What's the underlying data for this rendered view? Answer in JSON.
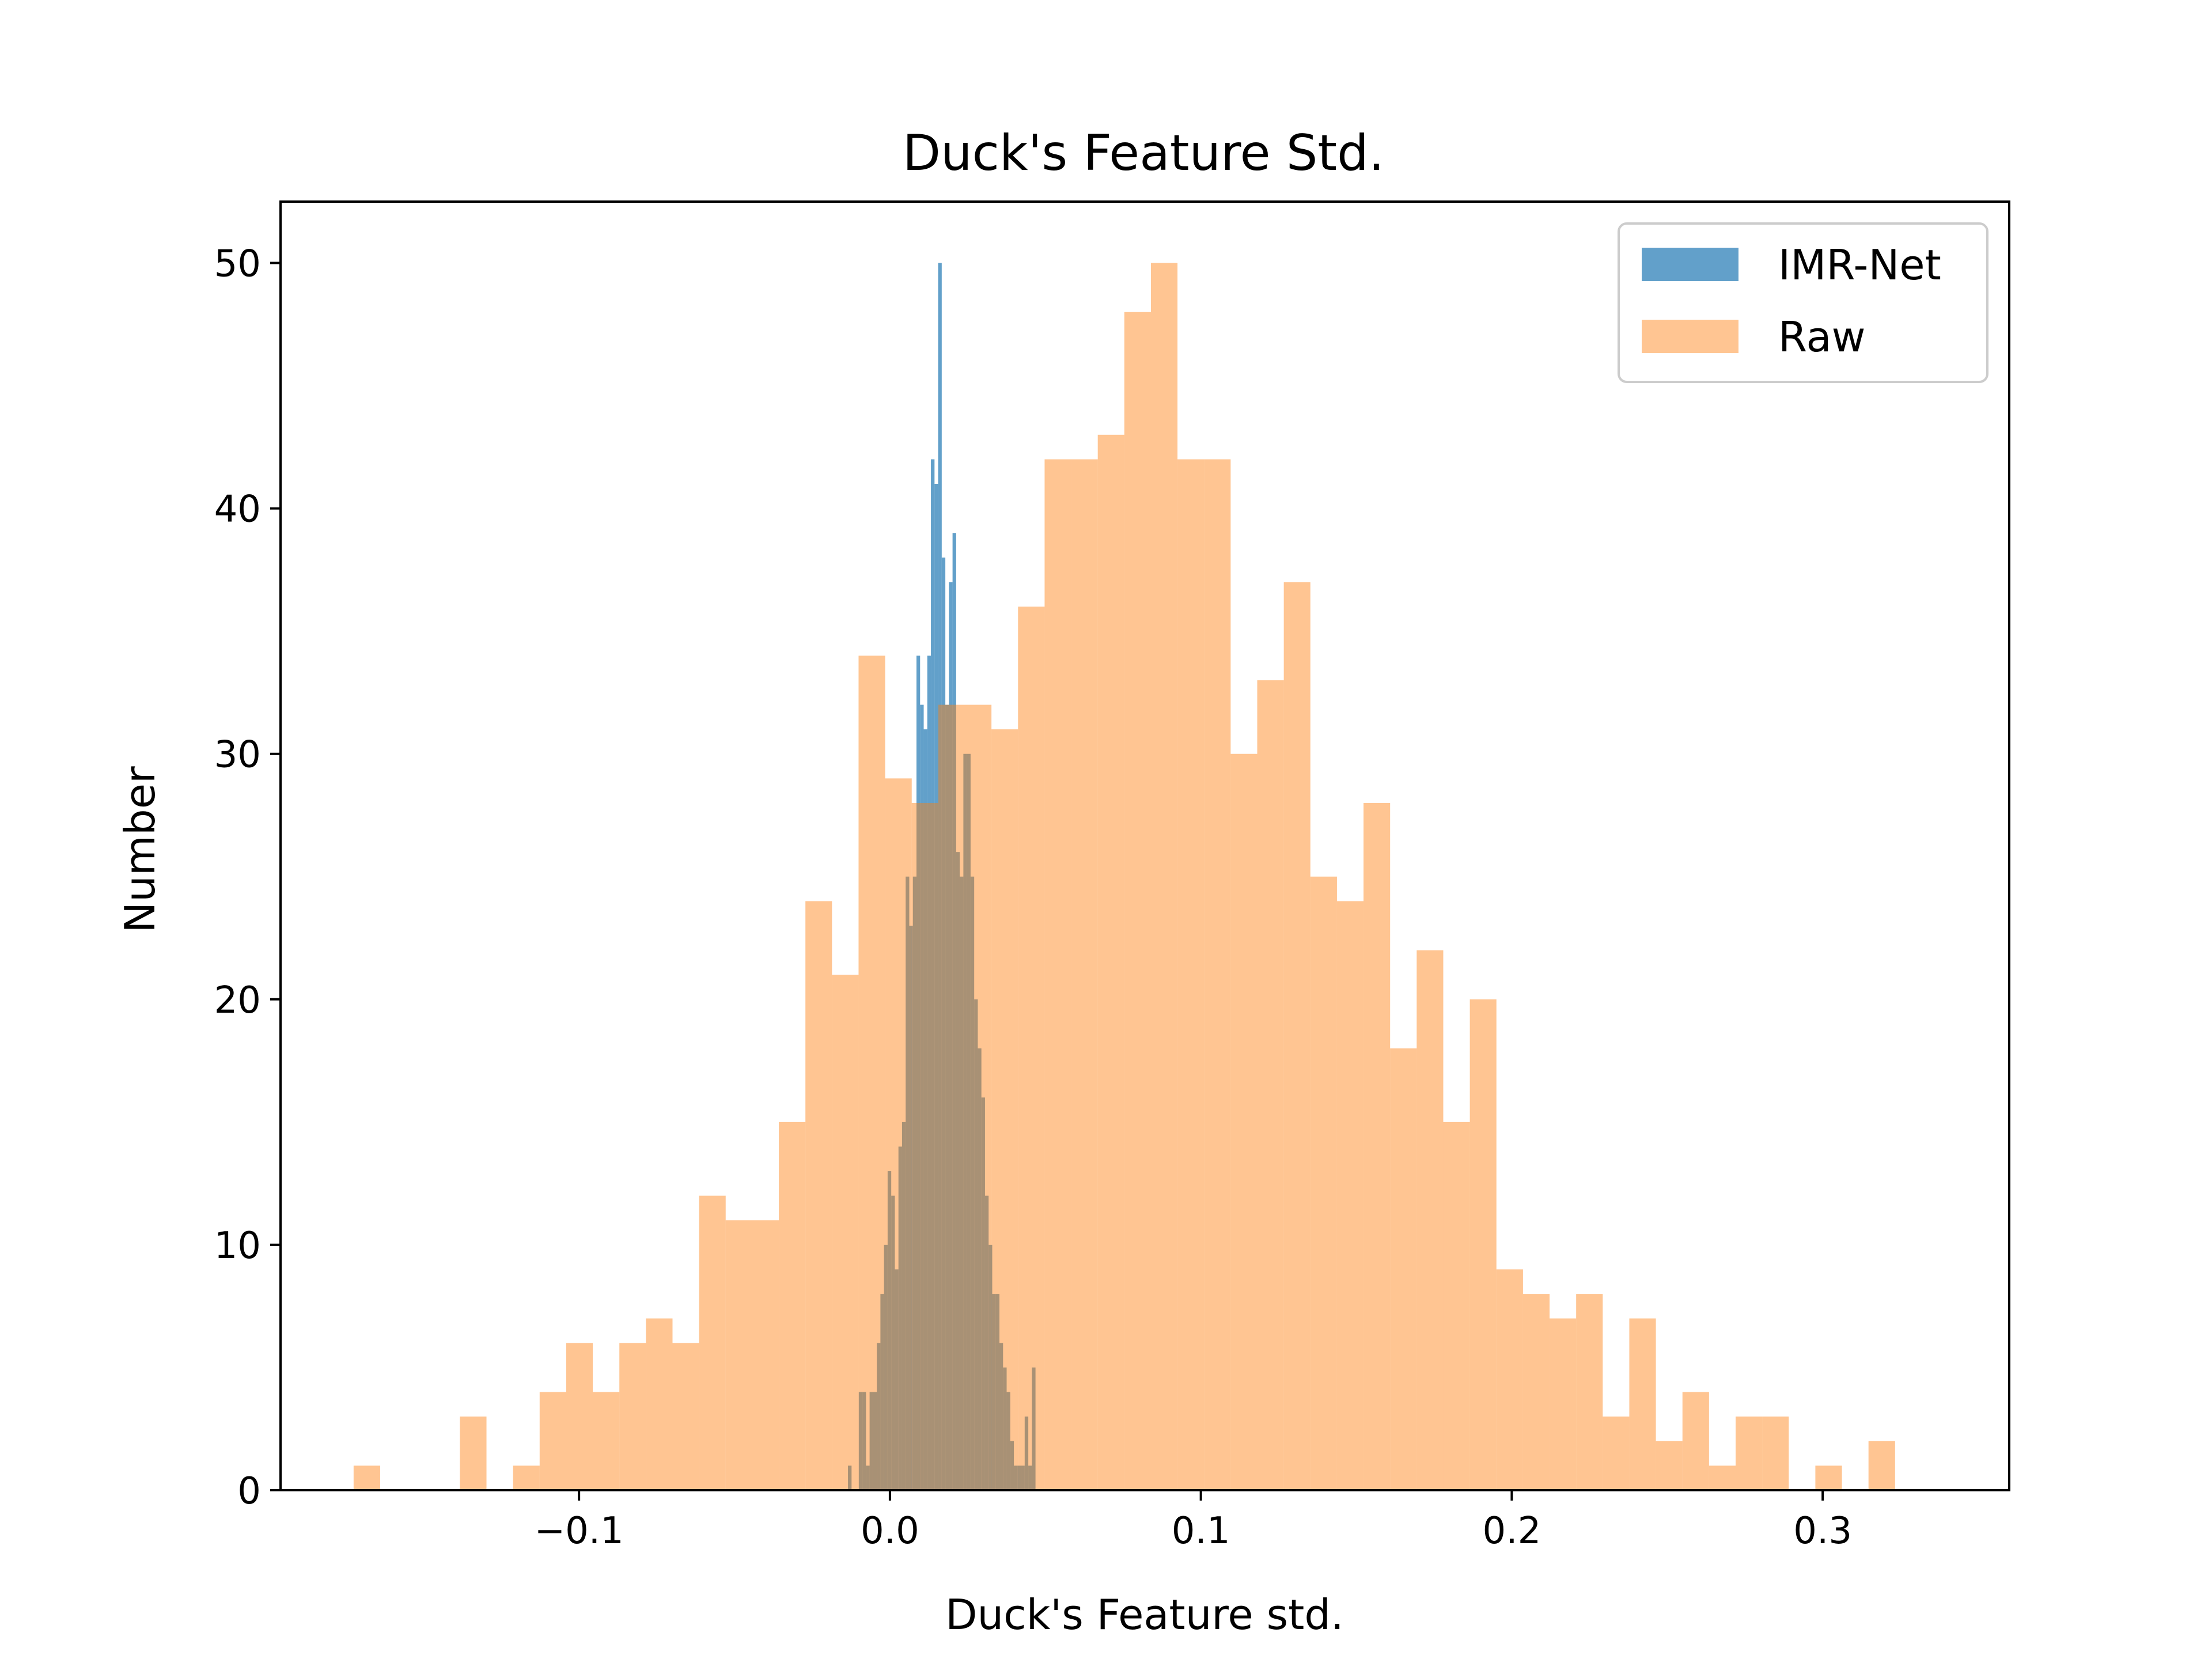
{
  "chart_data": {
    "type": "histogram",
    "title": "Duck's Feature Std.",
    "xlabel": "Duck's Feature std.",
    "ylabel": "Number",
    "xlim": [
      -0.196,
      0.36
    ],
    "ylim": [
      0,
      52.5
    ],
    "xticks": [
      -0.1,
      0.0,
      0.1,
      0.2,
      0.3
    ],
    "xtick_labels": [
      "−0.1",
      "0.0",
      "0.1",
      "0.2",
      "0.3"
    ],
    "yticks": [
      0,
      10,
      20,
      30,
      40,
      50
    ],
    "ytick_labels": [
      "0",
      "10",
      "20",
      "30",
      "40",
      "50"
    ],
    "grid": false,
    "legend_position": "top-right",
    "series": [
      {
        "name": "IMR-Net",
        "color": "#1f77b4",
        "alpha": 0.7,
        "bin_start": -0.0135,
        "bin_width": 0.00116,
        "counts": [
          1,
          0,
          0,
          4,
          4,
          1,
          4,
          4,
          6,
          8,
          10,
          13,
          12,
          9,
          14,
          15,
          25,
          23,
          25,
          34,
          32,
          31,
          34,
          42,
          41,
          50,
          38,
          32,
          37,
          39,
          26,
          25,
          30,
          30,
          25,
          20,
          18,
          16,
          12,
          10,
          8,
          8,
          6,
          5,
          4,
          2,
          1,
          1,
          1,
          3,
          1,
          5
        ]
      },
      {
        "name": "Raw",
        "color": "#ff7f0e",
        "alpha": 0.45,
        "bin_start": -0.1725,
        "bin_width": 0.008548,
        "counts": [
          1,
          0,
          0,
          0,
          3,
          0,
          1,
          4,
          6,
          4,
          6,
          7,
          6,
          12,
          11,
          11,
          15,
          24,
          21,
          34,
          29,
          28,
          32,
          32,
          31,
          36,
          42,
          42,
          43,
          48,
          50,
          42,
          42,
          30,
          33,
          37,
          25,
          24,
          28,
          18,
          22,
          15,
          20,
          9,
          8,
          7,
          8,
          3,
          7,
          2,
          4,
          1,
          3,
          3,
          0,
          1,
          0,
          2
        ]
      }
    ]
  }
}
